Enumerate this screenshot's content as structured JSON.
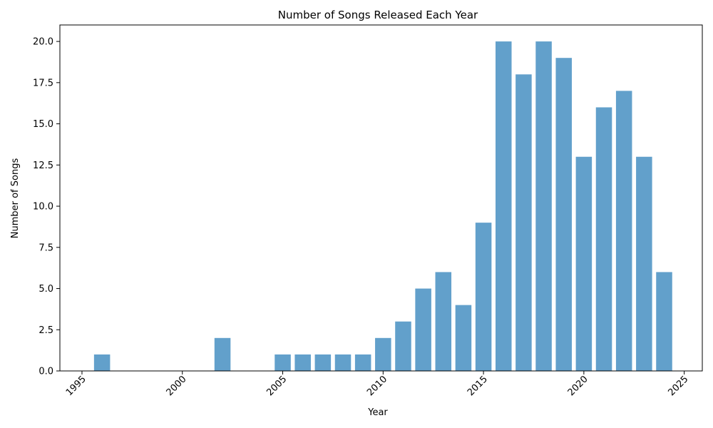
{
  "chart_data": {
    "type": "bar",
    "title": "Number of Songs Released Each Year",
    "xlabel": "Year",
    "ylabel": "Number of Songs",
    "x": [
      1996,
      2002,
      2005,
      2006,
      2007,
      2008,
      2009,
      2010,
      2011,
      2012,
      2013,
      2014,
      2015,
      2016,
      2017,
      2018,
      2019,
      2020,
      2021,
      2022,
      2023,
      2024
    ],
    "values": [
      1,
      2,
      1,
      1,
      1,
      1,
      1,
      2,
      3,
      5,
      6,
      4,
      9,
      20,
      18,
      20,
      19,
      13,
      16,
      17,
      13,
      6
    ],
    "xlim": [
      1993.9,
      2025.9
    ],
    "ylim": [
      0,
      21
    ],
    "xticks": [
      1995,
      2000,
      2005,
      2010,
      2015,
      2020,
      2025
    ],
    "xtick_labels": [
      "1995",
      "2000",
      "2005",
      "2010",
      "2015",
      "2020",
      "2025"
    ],
    "yticks": [
      0,
      2.5,
      5,
      7.5,
      10,
      12.5,
      15,
      17.5,
      20
    ],
    "ytick_labels": [
      "0.0",
      "2.5",
      "5.0",
      "7.5",
      "10.0",
      "12.5",
      "15.0",
      "17.5",
      "20.0"
    ],
    "xtick_rotation": 45,
    "grid": false,
    "legend": false,
    "bar_color": "#62a0cb"
  }
}
